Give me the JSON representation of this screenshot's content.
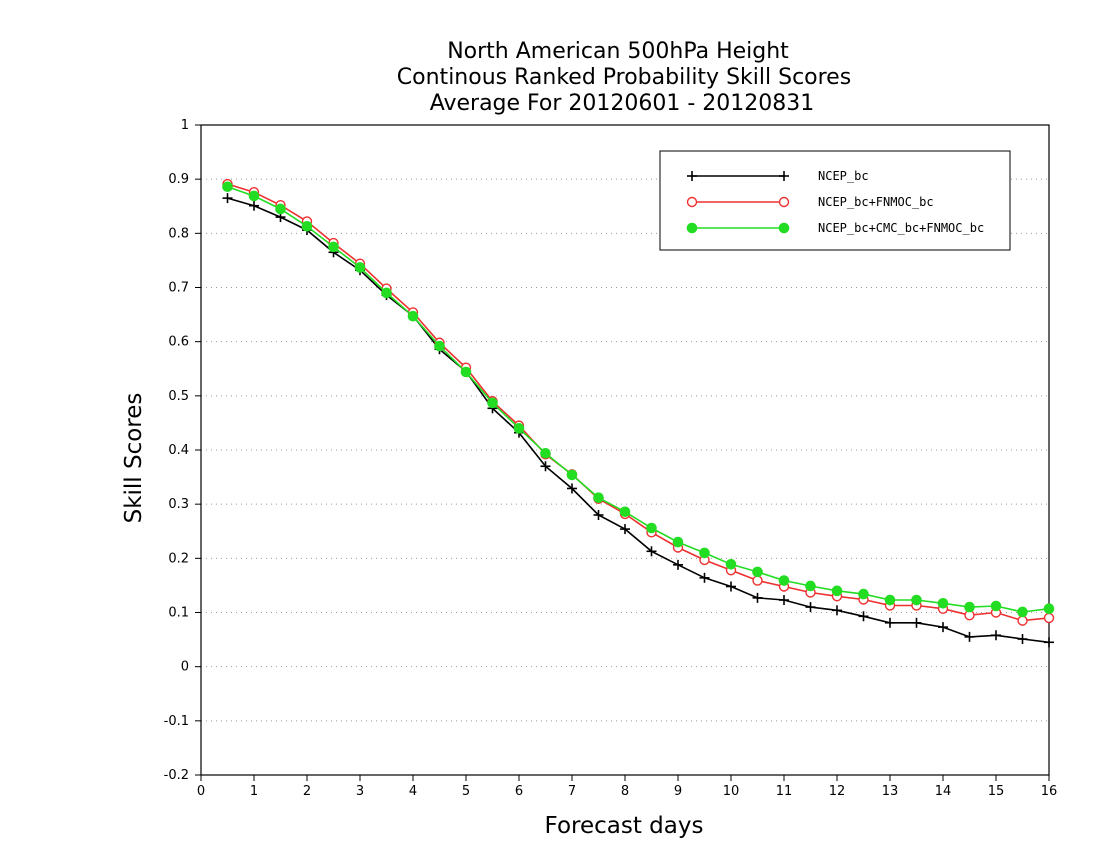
{
  "chart_data": {
    "type": "line",
    "title_lines": [
      "North American 500hPa Height",
      "Continous Ranked Probability Skill Scores",
      "Average For 20120601 - 20120831"
    ],
    "xlabel": "Forecast days",
    "ylabel": "Skill Scores",
    "xlim": [
      0,
      16
    ],
    "ylim": [
      -0.2,
      1
    ],
    "x_ticks": [
      "0",
      "1",
      "2",
      "3",
      "4",
      "5",
      "6",
      "7",
      "8",
      "9",
      "10",
      "11",
      "12",
      "13",
      "14",
      "15",
      "16"
    ],
    "y_ticks": [
      "-0.2",
      "-0.1",
      "0",
      "0.1",
      "0.2",
      "0.3",
      "0.4",
      "0.5",
      "0.6",
      "0.7",
      "0.8",
      "0.9",
      "1"
    ],
    "grid": "horizontal dotted",
    "legend_position": "top-right",
    "x": [
      0.5,
      1,
      1.5,
      2,
      2.5,
      3,
      3.5,
      4,
      4.5,
      5,
      5.5,
      6,
      6.5,
      7,
      7.5,
      8,
      8.5,
      9,
      9.5,
      10,
      10.5,
      11,
      11.5,
      12,
      12.5,
      13,
      13.5,
      14,
      14.5,
      15,
      15.5,
      16
    ],
    "series": [
      {
        "name": "NCEP_bc",
        "color": "#000000",
        "marker": "plus",
        "values": [
          0.865,
          0.851,
          0.83,
          0.806,
          0.765,
          0.732,
          0.686,
          0.648,
          0.586,
          0.545,
          0.477,
          0.432,
          0.37,
          0.329,
          0.28,
          0.254,
          0.213,
          0.188,
          0.164,
          0.148,
          0.127,
          0.123,
          0.11,
          0.104,
          0.093,
          0.081,
          0.081,
          0.073,
          0.055,
          0.058,
          0.051,
          0.045
        ]
      },
      {
        "name": "NCEP_bc+FNMOC_bc",
        "color": "#ee3030",
        "marker": "open-circle",
        "values": [
          0.891,
          0.876,
          0.852,
          0.822,
          0.782,
          0.744,
          0.698,
          0.654,
          0.598,
          0.552,
          0.49,
          0.445,
          0.392,
          0.355,
          0.31,
          0.282,
          0.248,
          0.22,
          0.197,
          0.178,
          0.159,
          0.148,
          0.137,
          0.13,
          0.124,
          0.113,
          0.113,
          0.107,
          0.095,
          0.1,
          0.085,
          0.09
        ]
      },
      {
        "name": "NCEP_bc+CMC_bc+FNMOC_bc",
        "color": "#22dd22",
        "marker": "filled-circle",
        "values": [
          0.886,
          0.869,
          0.845,
          0.813,
          0.775,
          0.737,
          0.69,
          0.647,
          0.592,
          0.544,
          0.487,
          0.44,
          0.394,
          0.354,
          0.312,
          0.286,
          0.256,
          0.23,
          0.21,
          0.189,
          0.175,
          0.159,
          0.149,
          0.14,
          0.134,
          0.123,
          0.123,
          0.117,
          0.11,
          0.112,
          0.101,
          0.107
        ]
      }
    ]
  }
}
